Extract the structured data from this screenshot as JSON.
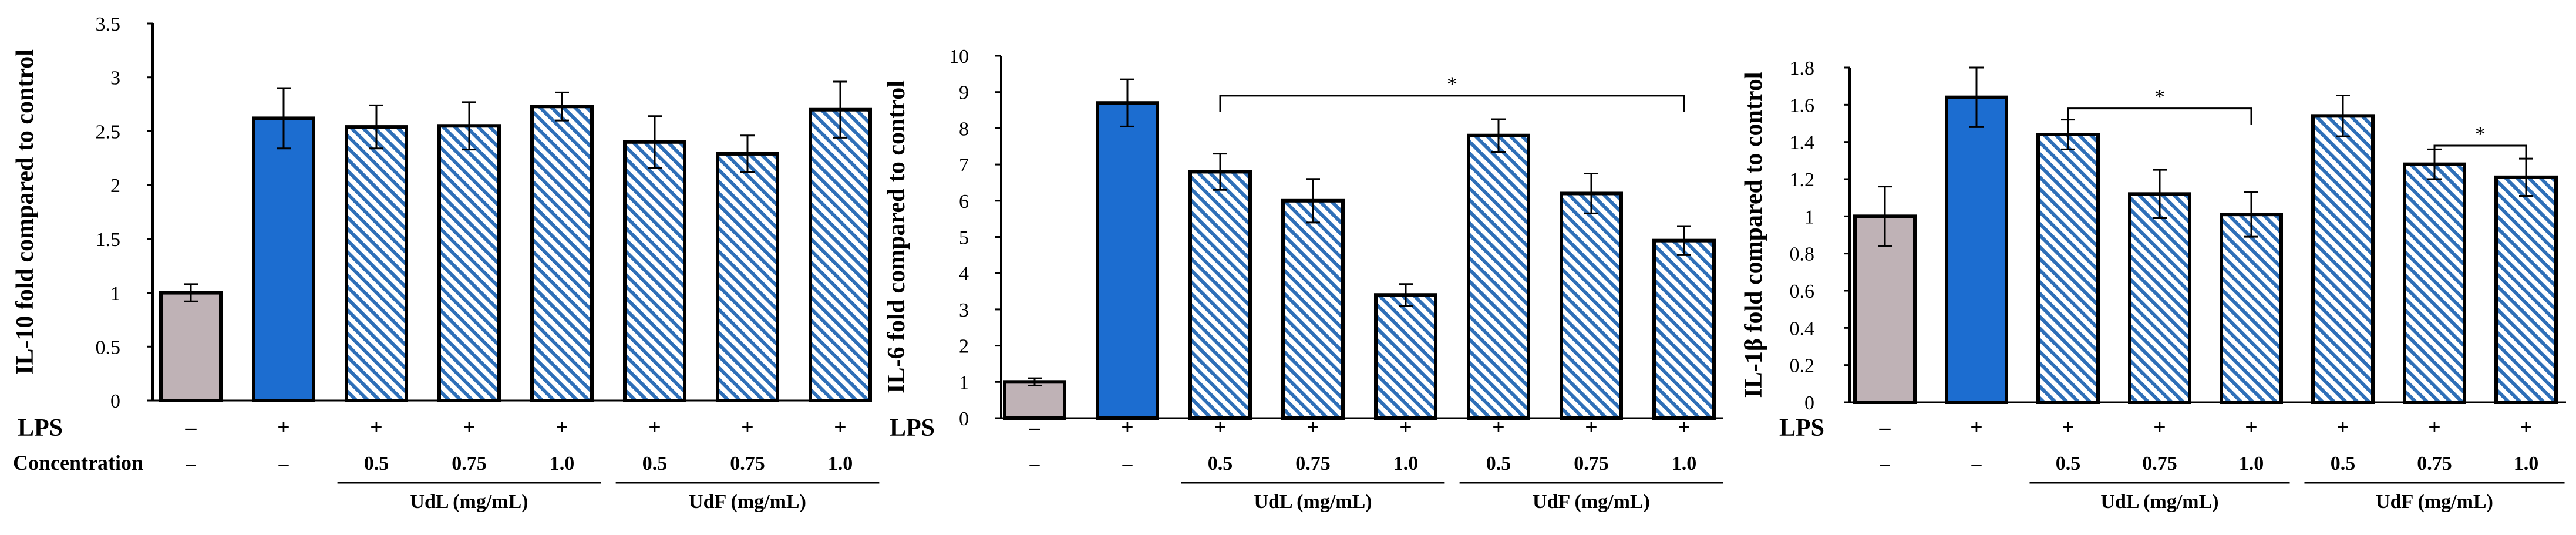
{
  "colors": {
    "control": "#bfb2b6",
    "lps": "#1c6dd0",
    "hatch": "#2e6fb8",
    "axis": "#000000"
  },
  "row_labels": {
    "lps": "LPS",
    "concentration": "Concentration"
  },
  "chart_data": [
    {
      "type": "bar",
      "ylabel": "IL-10 fold compared to control",
      "ylim": [
        0,
        3.5
      ],
      "yticks": [
        "0",
        "0.5",
        "1",
        "1.5",
        "2",
        "2.5",
        "3",
        "3.5"
      ],
      "categories": [
        "control",
        "LPS",
        "UdL 0.5",
        "UdL 0.75",
        "UdL 1.0",
        "UdF 0.5",
        "UdF 0.75",
        "UdF 1.0"
      ],
      "values": [
        1.0,
        2.62,
        2.54,
        2.55,
        2.73,
        2.4,
        2.29,
        2.7
      ],
      "errors": [
        0.08,
        0.28,
        0.2,
        0.22,
        0.13,
        0.24,
        0.17,
        0.26
      ],
      "styles": [
        "control",
        "lps",
        "hatch",
        "hatch",
        "hatch",
        "hatch",
        "hatch",
        "hatch"
      ],
      "lps_row": [
        "–",
        "+",
        "+",
        "+",
        "+",
        "+",
        "+",
        "+"
      ],
      "conc_row": [
        "–",
        "–",
        "0.5",
        "0.75",
        "1.0",
        "0.5",
        "0.75",
        "1.0"
      ],
      "groups": [
        {
          "label": "UdL (mg/mL)",
          "from": 2,
          "to": 4
        },
        {
          "label": "UdF (mg/mL)",
          "from": 5,
          "to": 7
        }
      ],
      "significance": []
    },
    {
      "type": "bar",
      "ylabel": "IL-6 fold compared to control",
      "ylim": [
        0,
        10
      ],
      "yticks": [
        "0",
        "1",
        "2",
        "3",
        "4",
        "5",
        "6",
        "7",
        "8",
        "9",
        "10"
      ],
      "categories": [
        "control",
        "LPS",
        "UdL 0.5",
        "UdL 0.75",
        "UdL 1.0",
        "UdF 0.5",
        "UdF 0.75",
        "UdF 1.0"
      ],
      "values": [
        1.0,
        8.7,
        6.8,
        6.0,
        3.4,
        7.8,
        6.2,
        4.9
      ],
      "errors": [
        0.1,
        0.65,
        0.5,
        0.6,
        0.3,
        0.45,
        0.55,
        0.4
      ],
      "styles": [
        "control",
        "lps",
        "hatch",
        "hatch",
        "hatch",
        "hatch",
        "hatch",
        "hatch"
      ],
      "lps_row": [
        "–",
        "+",
        "+",
        "+",
        "+",
        "+",
        "+",
        "+"
      ],
      "conc_row": [
        "–",
        "–",
        "0.5",
        "0.75",
        "1.0",
        "0.5",
        "0.75",
        "1.0"
      ],
      "groups": [
        {
          "label": "UdL (mg/mL)",
          "from": 2,
          "to": 4
        },
        {
          "label": "UdF (mg/mL)",
          "from": 5,
          "to": 7
        }
      ],
      "significance": [
        {
          "from": 2,
          "to": 7,
          "level": 8.9,
          "label": "*"
        }
      ]
    },
    {
      "type": "bar",
      "ylabel": "IL-1β fold compared to control",
      "ylim": [
        0,
        1.8
      ],
      "yticks": [
        "0",
        "0.2",
        "0.4",
        "0.6",
        "0.8",
        "1",
        "1.2",
        "1.4",
        "1.6",
        "1.8"
      ],
      "categories": [
        "control",
        "LPS",
        "UdL 0.5",
        "UdL 0.75",
        "UdL 1.0",
        "UdF 0.5",
        "UdF 0.75",
        "UdF 1.0"
      ],
      "values": [
        1.0,
        1.64,
        1.44,
        1.12,
        1.01,
        1.54,
        1.28,
        1.21
      ],
      "errors": [
        0.16,
        0.16,
        0.08,
        0.13,
        0.12,
        0.11,
        0.08,
        0.1
      ],
      "styles": [
        "control",
        "lps",
        "hatch",
        "hatch",
        "hatch",
        "hatch",
        "hatch",
        "hatch"
      ],
      "lps_row": [
        "–",
        "+",
        "+",
        "+",
        "+",
        "+",
        "+",
        "+"
      ],
      "conc_row": [
        "–",
        "–",
        "0.5",
        "0.75",
        "1.0",
        "0.5",
        "0.75",
        "1.0"
      ],
      "groups": [
        {
          "label": "UdL (mg/mL)",
          "from": 2,
          "to": 4
        },
        {
          "label": "UdF (mg/mL)",
          "from": 5,
          "to": 7
        }
      ],
      "significance": [
        {
          "from": 2,
          "to": 4,
          "level": 1.58,
          "label": "*"
        },
        {
          "from": 6,
          "to": 7,
          "level": 1.38,
          "label": "*"
        }
      ]
    }
  ]
}
